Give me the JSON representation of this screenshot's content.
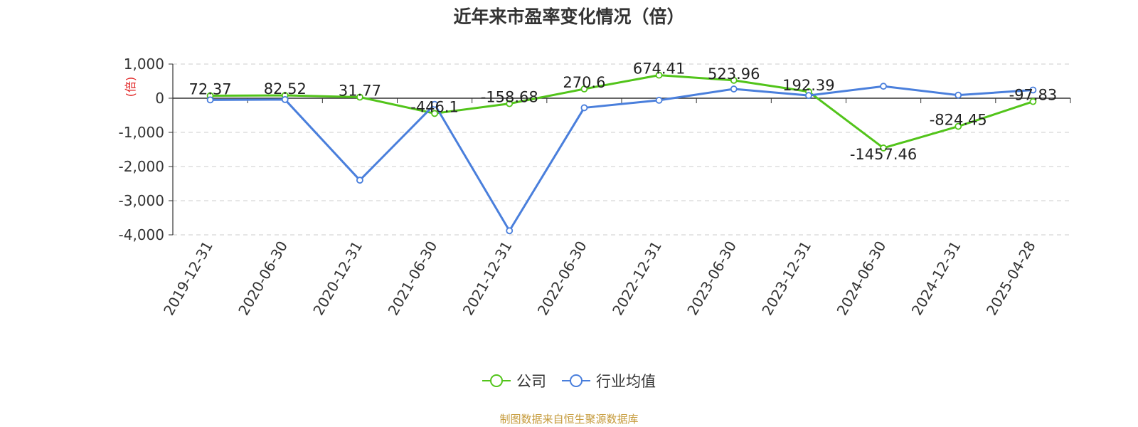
{
  "chart_data": {
    "type": "line",
    "title": "近年来市盈率变化情况（倍）",
    "ylabel": "(倍)",
    "x": [
      "2019-12-31",
      "2020-06-30",
      "2020-12-31",
      "2021-06-30",
      "2021-12-31",
      "2022-06-30",
      "2022-12-31",
      "2023-06-30",
      "2023-12-31",
      "2024-06-30",
      "2024-12-31",
      "2025-04-28"
    ],
    "ylim": [
      -4000,
      1000
    ],
    "yticks": [
      1000,
      0,
      -1000,
      -2000,
      -3000,
      -4000
    ],
    "ytick_labels": [
      "1,000",
      "0",
      "-1,000",
      "-2,000",
      "-3,000",
      "-4,000"
    ],
    "grid": true,
    "legend_position": "bottom",
    "series": [
      {
        "name": "公司",
        "color": "#52c41a",
        "values": [
          72.37,
          82.52,
          31.77,
          -446.1,
          -158.68,
          270.6,
          674.41,
          523.96,
          192.39,
          -1457.46,
          -824.45,
          -97.83
        ],
        "labels": [
          "72.37",
          "82.52",
          "31.77",
          "-446.1",
          "-158.68",
          "270.6",
          "674.41",
          "523.96",
          "192.39",
          "-1457.46",
          "-824.45",
          "-97.83"
        ]
      },
      {
        "name": "行业均值",
        "color": "#4a7fdc",
        "values": [
          -50,
          -40,
          -2400,
          -180,
          -3880,
          -280,
          -60,
          270,
          80,
          350,
          90,
          240
        ]
      }
    ]
  },
  "footer": {
    "source": "制图数据来自恒生聚源数据库"
  }
}
